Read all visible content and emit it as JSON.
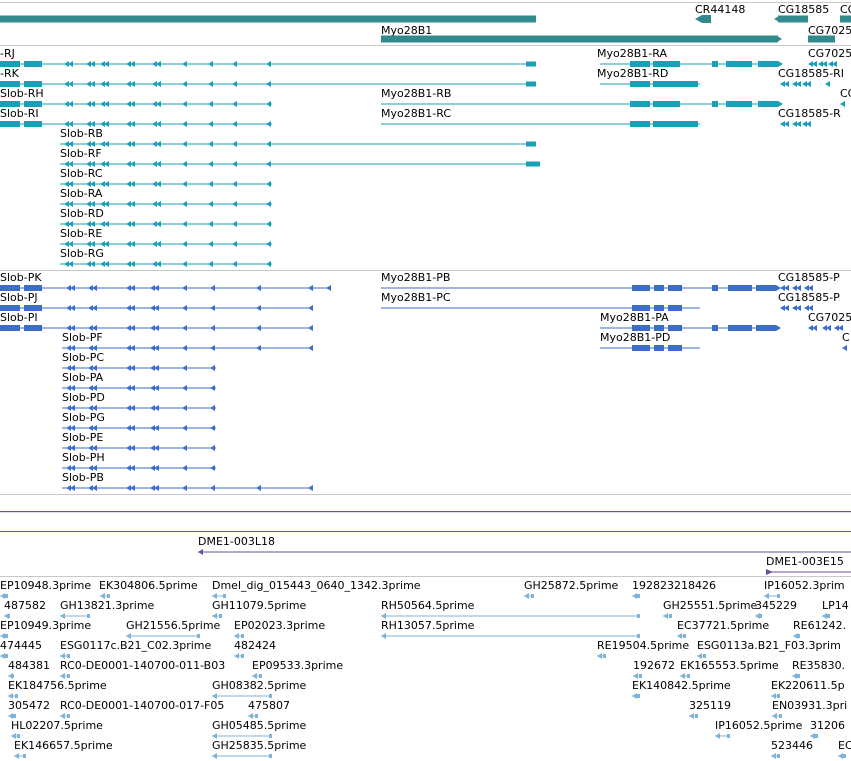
{
  "colors": {
    "gene": "#338a8e",
    "transcript_rna": "#18a0b7",
    "transcript_protein": "#3c6ec8",
    "bac": "#6b4fa0",
    "est": "#7fb4d6",
    "separator": "#c8c8c8"
  },
  "genes_top": [
    {
      "name": ""
    },
    {
      "name": "CR44148"
    },
    {
      "name": "CG18585"
    },
    {
      "name": "CG"
    },
    {
      "name": "Myo28B1"
    },
    {
      "name": "CG7025"
    }
  ],
  "rna_transcripts": [
    "-RJ",
    "-RK",
    "Slob-RH",
    "Slob-RI",
    "Slob-RB",
    "Slob-RF",
    "Slob-RC",
    "Slob-RA",
    "Slob-RD",
    "Slob-RE",
    "Slob-RG",
    "Myo28B1-RA",
    "Myo28B1-RD",
    "Myo28B1-RB",
    "Myo28B1-RC",
    "CG7025",
    "CG18585-RI",
    "CG",
    "CG18585-R"
  ],
  "protein_transcripts": [
    "Slob-PK",
    "Slob-PJ",
    "Slob-PI",
    "Slob-PF",
    "Slob-PC",
    "Slob-PA",
    "Slob-PD",
    "Slob-PG",
    "Slob-PE",
    "Slob-PH",
    "Slob-PB",
    "Myo28B1-PB",
    "Myo28B1-PC",
    "Myo28B1-PA",
    "Myo28B1-PD",
    "CG18585-P",
    "CG18585-P",
    "CG7025",
    "C"
  ],
  "bac_clones": [
    "DME1-003L18",
    "DME1-003E15"
  ],
  "est_labels": [
    "EP10948.3prime",
    "EK304806.5prime",
    "Dmel_dig_015443_0640_1342.3prime",
    "GH25872.5prime",
    "192823218426",
    "IP16052.3prim",
    "487582",
    "GH13821.3prime",
    "GH11079.5prime",
    "RH50564.5prime",
    "GH25551.5prime",
    "345229",
    "LP14",
    "EP10949.3prime",
    "GH21556.5prime",
    "EP02023.3prime",
    "RH13057.5prime",
    "EC37721.5prime",
    "RE61242.",
    "474445",
    "ESG0117c.B21_C02.3prime",
    "482424",
    "RE19504.5prime",
    "ESG0113a.B21_F03.3prim",
    "484381",
    "RC0-DE0001-140700-011-B03",
    "EP09533.3prime",
    "192672",
    "EK165553.5prime",
    "RE35830.",
    "EK184756.5prime",
    "GH08382.5prime",
    "EK140842.5prime",
    "EK220611.5p",
    "305472",
    "RC0-DE0001-140700-017-F05",
    "475807",
    "325119",
    "EN03931.3pri",
    "HL02207.5prime",
    "GH05485.5prime",
    "IP16052.5prime",
    "31206",
    "EK146657.5prime",
    "GH25835.5prime",
    "523446",
    "EC"
  ]
}
